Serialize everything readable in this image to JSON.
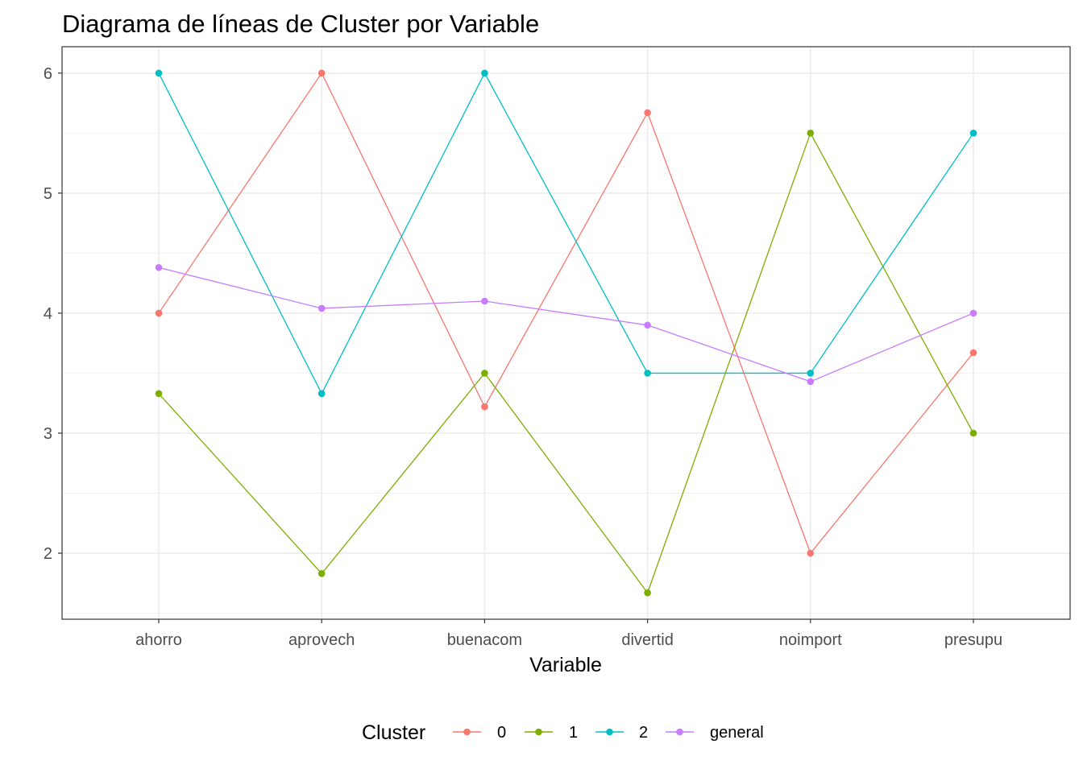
{
  "chart_data": {
    "type": "line",
    "title": "Diagrama de líneas de Cluster por Variable",
    "xlabel": "Variable",
    "ylabel": "",
    "categories": [
      "ahorro",
      "aprovech",
      "buenacom",
      "divertid",
      "noimport",
      "presupu"
    ],
    "ylim": [
      1.45,
      6.22
    ],
    "yticks": [
      2,
      3,
      4,
      5,
      6
    ],
    "grid": true,
    "legend": {
      "title": "Cluster",
      "position": "bottom"
    },
    "series": [
      {
        "name": "0",
        "color": "#F8766D",
        "values": [
          4.0,
          6.0,
          3.22,
          5.67,
          2.0,
          3.67
        ]
      },
      {
        "name": "1",
        "color": "#7CAE00",
        "values": [
          3.33,
          1.83,
          3.5,
          1.67,
          5.5,
          3.0
        ]
      },
      {
        "name": "2",
        "color": "#00BFC4",
        "values": [
          6.0,
          3.33,
          6.0,
          3.5,
          3.5,
          5.5
        ]
      },
      {
        "name": "general",
        "color": "#C77CFF",
        "values": [
          4.38,
          4.04,
          4.1,
          3.9,
          3.43,
          4.0
        ]
      }
    ]
  }
}
